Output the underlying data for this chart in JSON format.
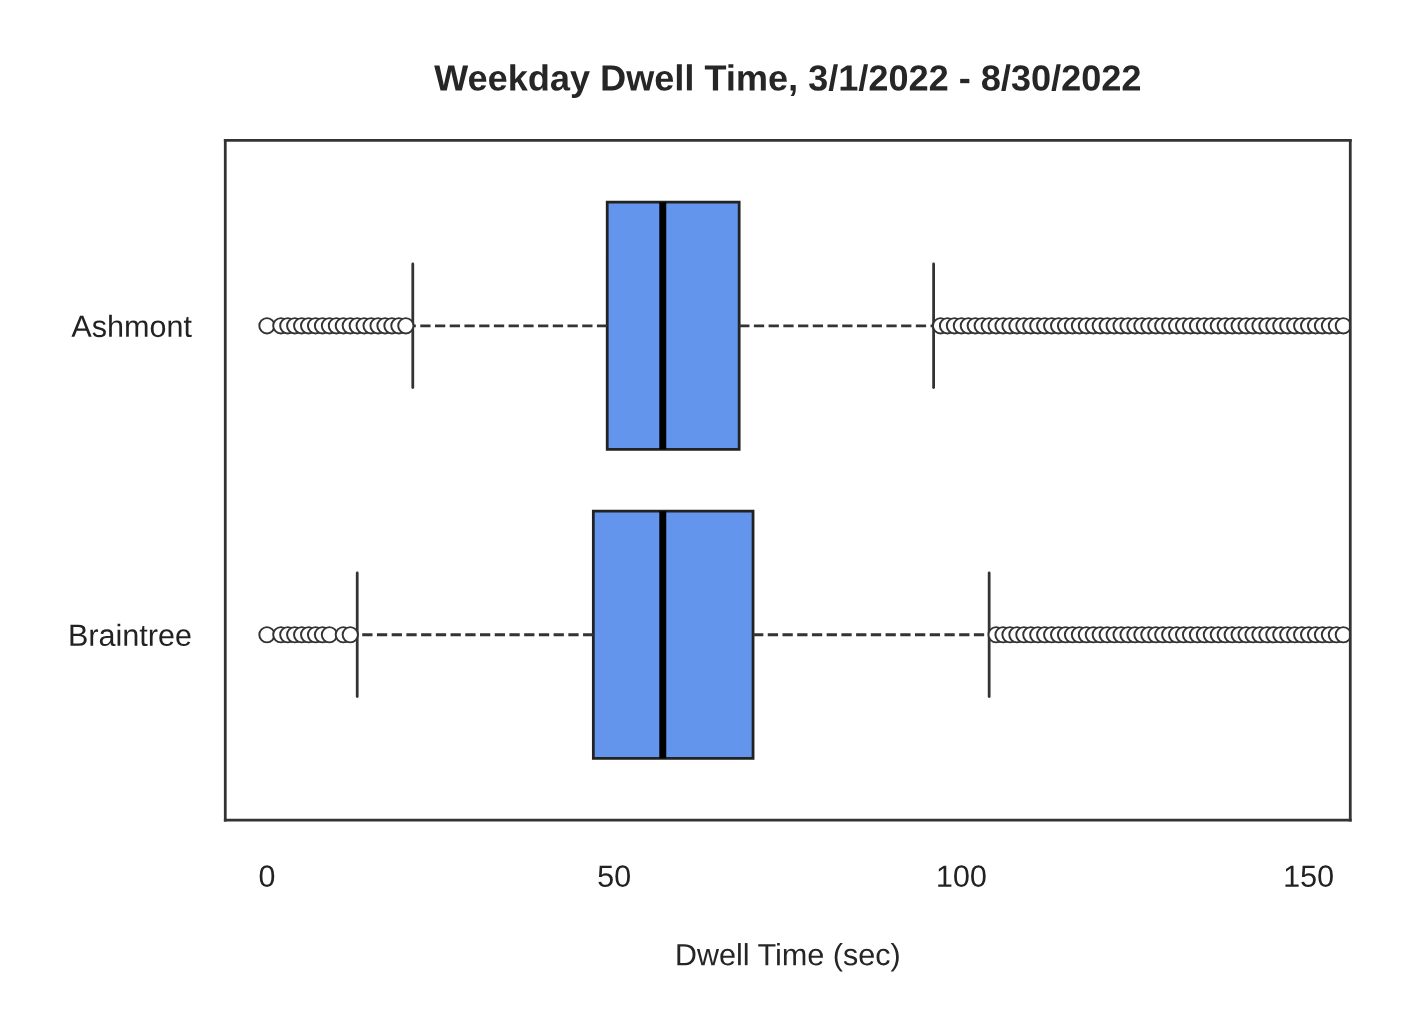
{
  "chart_data": {
    "type": "box",
    "orientation": "horizontal",
    "title": "Weekday Dwell Time, 3/1/2022 - 8/30/2022",
    "xlabel": "Dwell Time (sec)",
    "categories": [
      "Ashmont",
      "Braintree"
    ],
    "color": "#6495ed",
    "xlim": [
      -6,
      156
    ],
    "xticks": [
      0,
      50,
      100,
      150
    ],
    "grid": false,
    "line_style": "dashed",
    "boxes": [
      {
        "low": 21,
        "q1": 49,
        "median": 57,
        "q3": 68,
        "high": 96,
        "outliers": [
          0,
          2,
          3,
          4,
          5,
          6,
          7,
          8,
          9,
          10,
          11,
          12,
          13,
          14,
          15,
          16,
          17,
          18,
          19,
          20,
          97,
          98,
          99,
          100,
          101,
          102,
          103,
          104,
          105,
          106,
          107,
          108,
          109,
          110,
          111,
          112,
          113,
          114,
          115,
          116,
          117,
          118,
          119,
          120,
          121,
          122,
          123,
          124,
          125,
          126,
          127,
          128,
          129,
          130,
          131,
          132,
          133,
          134,
          135,
          136,
          137,
          138,
          139,
          140,
          141,
          142,
          143,
          144,
          145,
          146,
          147,
          148,
          149,
          150,
          151,
          152,
          153,
          154,
          155
        ]
      },
      {
        "low": 13,
        "q1": 47,
        "median": 57,
        "q3": 70,
        "high": 104,
        "outliers": [
          0,
          2,
          3,
          4,
          5,
          6,
          7,
          8,
          9,
          11,
          12,
          105,
          106,
          107,
          108,
          109,
          110,
          111,
          112,
          113,
          114,
          115,
          116,
          117,
          118,
          119,
          120,
          121,
          122,
          123,
          124,
          125,
          126,
          127,
          128,
          129,
          130,
          131,
          132,
          133,
          134,
          135,
          136,
          137,
          138,
          139,
          140,
          141,
          142,
          143,
          144,
          145,
          146,
          147,
          148,
          149,
          150,
          151,
          152,
          153,
          154,
          155
        ]
      }
    ]
  }
}
